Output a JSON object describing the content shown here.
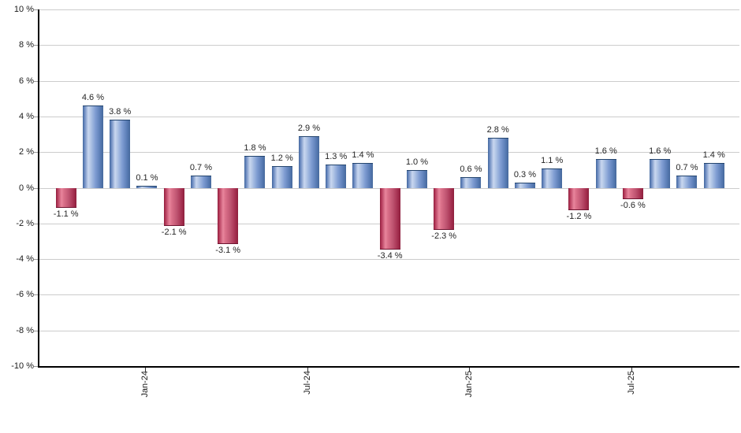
{
  "chart_data": {
    "type": "bar",
    "title": "",
    "xlabel": "",
    "ylabel": "",
    "ylim": [
      -10,
      10
    ],
    "y_tick_step": 2,
    "grid": true,
    "legend": false,
    "y_tick_labels": [
      "10 %",
      "8 %",
      "6 %",
      "4 %",
      "2 %",
      "0 %",
      "-2 %",
      "-4 %",
      "-6 %",
      "-8 %",
      "-10 %"
    ],
    "x_tick_labels": [
      {
        "bar_index": 3,
        "label": "Jan-24"
      },
      {
        "bar_index": 9,
        "label": "Jul-24"
      },
      {
        "bar_index": 15,
        "label": "Jan-25"
      },
      {
        "bar_index": 21,
        "label": "Jul-25"
      }
    ],
    "values": [
      -1.1,
      4.6,
      3.8,
      0.1,
      -2.1,
      0.7,
      -3.1,
      1.8,
      1.2,
      2.9,
      1.3,
      1.4,
      -3.4,
      1.0,
      -2.3,
      0.6,
      2.8,
      0.3,
      1.1,
      -1.2,
      1.6,
      -0.6,
      1.6,
      0.7,
      1.4
    ],
    "bar_labels": [
      "-1.1 %",
      "4.6 %",
      "3.8 %",
      "0.1 %",
      "-2.1 %",
      "0.7 %",
      "-3.1 %",
      "1.8 %",
      "1.2 %",
      "2.9 %",
      "1.3 %",
      "1.4 %",
      "-3.4 %",
      "1.0 %",
      "-2.3 %",
      "0.6 %",
      "2.8 %",
      "0.3 %",
      "1.1 %",
      "-1.2 %",
      "1.6 %",
      "-0.6 %",
      "1.6 %",
      "0.7 %",
      "1.4 %"
    ],
    "colors": {
      "positive_bar": "#6b8ec9",
      "positive_bar_light": "#c9d7ef",
      "positive_bar_dark": "#46699c",
      "negative_bar": "#c05572",
      "negative_bar_light": "#e8869d",
      "negative_bar_dark": "#8e1f3d",
      "gridline": "#cccccc",
      "axis": "#000000",
      "label_text": "#262626"
    }
  }
}
